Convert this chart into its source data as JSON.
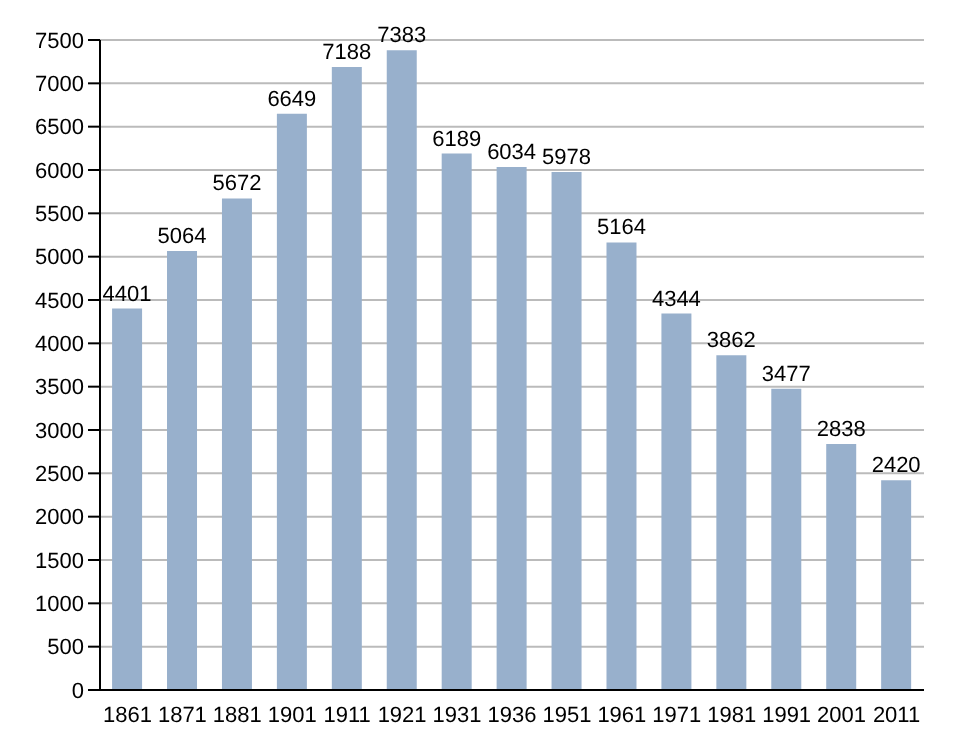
{
  "chart_data": {
    "type": "bar",
    "categories": [
      "1861",
      "1871",
      "1881",
      "1901",
      "1911",
      "1921",
      "1931",
      "1936",
      "1951",
      "1961",
      "1971",
      "1981",
      "1991",
      "2001",
      "2011"
    ],
    "values": [
      4401,
      5064,
      5672,
      6649,
      7188,
      7383,
      6189,
      6034,
      5978,
      5164,
      4344,
      3862,
      3477,
      2838,
      2420
    ],
    "color": "#98b0cc",
    "data_labels": true,
    "grid": "y",
    "legend": false,
    "ylim": [
      0,
      7500
    ],
    "yticks": [
      0,
      500,
      1000,
      1500,
      2000,
      2500,
      3000,
      3500,
      4000,
      4500,
      5000,
      5500,
      6000,
      6500,
      7000,
      7500
    ]
  }
}
